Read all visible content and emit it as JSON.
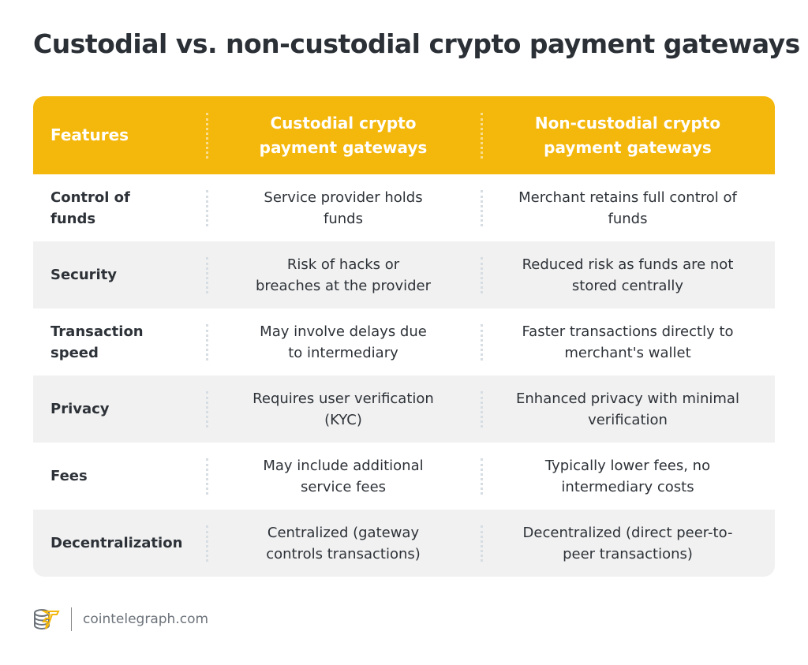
{
  "title": "Custodial vs. non-custodial crypto payment gateways",
  "headers": [
    "Features",
    "Custodial crypto payment gateways",
    "Non-custodial crypto payment gateways"
  ],
  "rows": [
    [
      "Control of funds",
      "Service provider holds funds",
      "Merchant retains full control of funds"
    ],
    [
      "Security",
      "Risk of hacks or breaches at the provider",
      "Reduced risk as funds are not stored centrally"
    ],
    [
      "Transaction speed",
      "May involve delays due to intermediary",
      "Faster transactions directly to merchant's wallet"
    ],
    [
      "Privacy",
      "Requires user verification (KYC)",
      "Enhanced privacy with minimal verification"
    ],
    [
      "Fees",
      "May include additional service fees",
      "Typically lower fees, no intermediary costs"
    ],
    [
      "Decentralization",
      "Centralized (gateway controls transactions)",
      "Decentralized (direct peer-to-peer transactions)"
    ]
  ],
  "colors": {
    "header": "#F4B70C",
    "alt_row": "#F1F1F1",
    "text": "#2D3238"
  },
  "footer": {
    "logo_icon": "cointelegraph-logo-icon",
    "domain": "cointelegraph.com"
  }
}
